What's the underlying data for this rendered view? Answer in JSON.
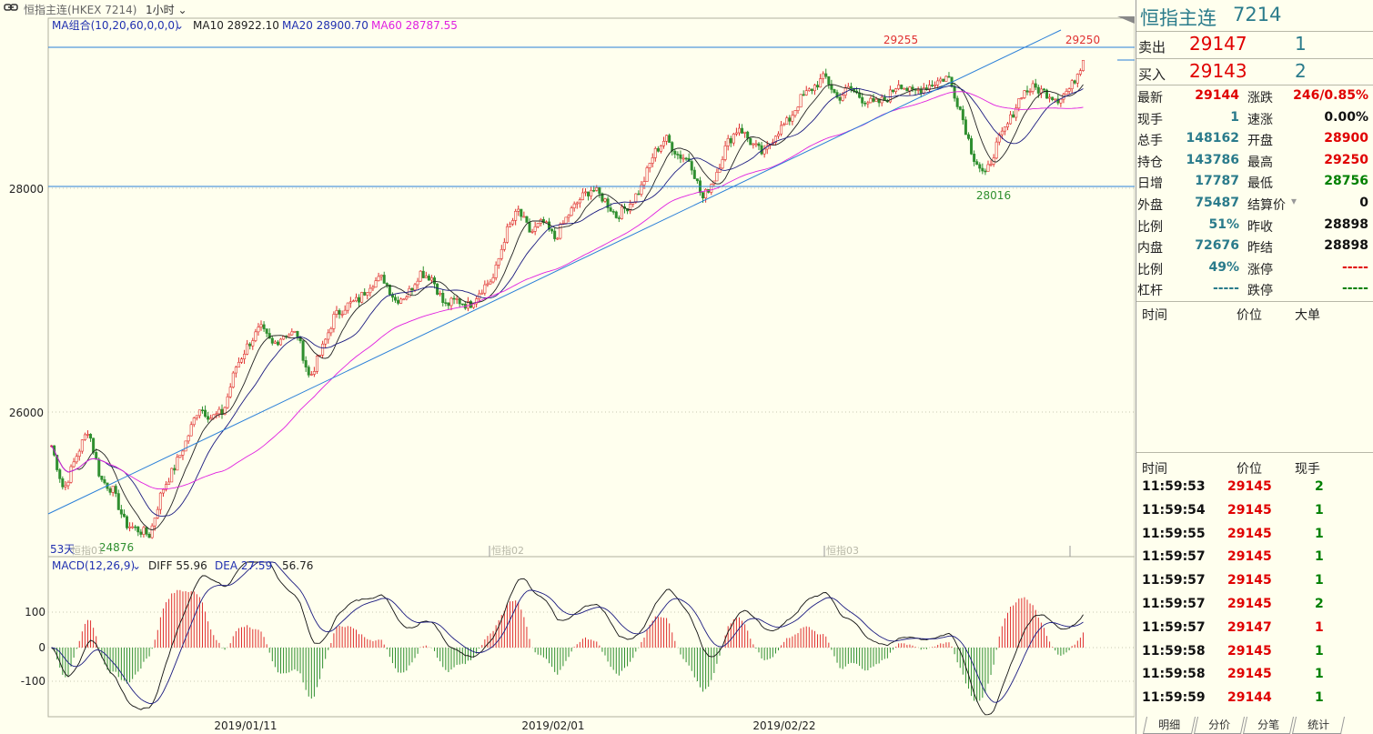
{
  "top": {
    "title": "恒指主连(HKEX 7214)",
    "period": "1小时"
  },
  "main": {
    "ma_label": "MA组合(10,20,60,0,0,0)",
    "ma10": "MA10 28922.10",
    "ma20": "MA20 28900.70",
    "ma60": "MA60 28787.55",
    "y_labels": [
      "28000",
      "26000"
    ],
    "high_label": "29255",
    "high2_label": "29250",
    "low_label": "28016",
    "low2_label": "24876",
    "period_count": "53天",
    "contract_labels": [
      "恒指01",
      "恒指02",
      "恒指03"
    ]
  },
  "macd": {
    "label": "MACD(12,26,9)",
    "diff": "DIFF 55.96",
    "dea": "DEA 27.59",
    "macd": "56.76",
    "y_labels": [
      "100",
      "0",
      "-100"
    ]
  },
  "x_dates": [
    "2019/01/11",
    "2019/02/01",
    "2019/02/22"
  ],
  "chart_data": {
    "type": "candlestick",
    "title": "恒指主连(HKEX 7214)",
    "interval": "1小时",
    "ylim": [
      24600,
      29500
    ],
    "y_ticks": [
      28000,
      26000
    ],
    "x_labels": [
      "2019/01/11",
      "2019/02/01",
      "2019/02/22"
    ],
    "segment_closes": [
      25700,
      25300,
      25600,
      25850,
      25400,
      25300,
      25000,
      24950,
      24900,
      25300,
      25500,
      25750,
      26050,
      25950,
      26000,
      26400,
      26600,
      26750,
      26600,
      26700,
      26700,
      26300,
      26550,
      26850,
      26950,
      27000,
      27150,
      27200,
      27000,
      27050,
      27250,
      27200,
      26950,
      27000,
      26950,
      27100,
      27200,
      27600,
      27800,
      27600,
      27700,
      27550,
      27750,
      27900,
      28000,
      27900,
      27750,
      27850,
      28000,
      28300,
      28450,
      28300,
      28250,
      27900,
      28100,
      28400,
      28550,
      28400,
      28300,
      28500,
      28600,
      28800,
      28900,
      29000,
      28800,
      28900,
      28800,
      28750,
      28800,
      28950,
      28850,
      28900,
      28950,
      29000,
      28700,
      28300,
      28100,
      28400,
      28600,
      28850,
      28900,
      28850,
      28800,
      28900,
      29145
    ],
    "high": 29255,
    "low": 24876,
    "last": 29144,
    "ma": {
      "MA10": 28922.1,
      "MA20": 28900.7,
      "MA60": 28787.55
    },
    "macd": {
      "DIFF": 55.96,
      "DEA": 27.59,
      "MACD": 56.76
    }
  },
  "quote": {
    "name": "恒指主连",
    "code": "7214",
    "sell_label": "卖出",
    "sell_price": "29147",
    "sell_vol": "1",
    "buy_label": "买入",
    "buy_price": "29143",
    "buy_vol": "2"
  },
  "info_rows": [
    {
      "l1": "最新",
      "v1": "29144",
      "c1": "#e00000",
      "l2": "涨跌",
      "v2": "246/0.85%",
      "c2": "#e00000"
    },
    {
      "l1": "现手",
      "v1": "1",
      "c1": "#2a7b8b",
      "l2": "速涨",
      "v2": "0.00%",
      "c2": "#111111"
    },
    {
      "l1": "总手",
      "v1": "148162",
      "c1": "#2a7b8b",
      "l2": "开盘",
      "v2": "28900",
      "c2": "#e00000"
    },
    {
      "l1": "持仓",
      "v1": "143786",
      "c1": "#2a7b8b",
      "l2": "最高",
      "v2": "29250",
      "c2": "#e00000"
    },
    {
      "l1": "日增",
      "v1": "17787",
      "c1": "#2a7b8b",
      "l2": "最低",
      "v2": "28756",
      "c2": "#008000"
    },
    {
      "l1": "外盘",
      "v1": "75487",
      "c1": "#2a7b8b",
      "l2": "结算价",
      "v2": "0",
      "c2": "#111111"
    },
    {
      "l1": "比例",
      "v1": "51%",
      "c1": "#2a7b8b",
      "l2": "昨收",
      "v2": "28898",
      "c2": "#111111"
    },
    {
      "l1": "内盘",
      "v1": "72676",
      "c1": "#2a7b8b",
      "l2": "昨结",
      "v2": "28898",
      "c2": "#111111"
    },
    {
      "l1": "比例",
      "v1": "49%",
      "c1": "#2a7b8b",
      "l2": "涨停",
      "v2": "-----",
      "c2": "#e00000"
    },
    {
      "l1": "杠杆",
      "v1": "-----",
      "c1": "#2a7b8b",
      "l2": "跌停",
      "v2": "-----",
      "c2": "#008000"
    }
  ],
  "big_order_header": {
    "time": "时间",
    "price": "价位",
    "big": "大单"
  },
  "tick_header": {
    "time": "时间",
    "price": "价位",
    "vol": "现手"
  },
  "ticks": [
    {
      "time": "11:59:53",
      "price": "29145",
      "vol": "2",
      "vc": "#008000"
    },
    {
      "time": "11:59:54",
      "price": "29145",
      "vol": "1",
      "vc": "#008000"
    },
    {
      "time": "11:59:55",
      "price": "29145",
      "vol": "1",
      "vc": "#008000"
    },
    {
      "time": "11:59:57",
      "price": "29145",
      "vol": "1",
      "vc": "#008000"
    },
    {
      "time": "11:59:57",
      "price": "29145",
      "vol": "1",
      "vc": "#008000"
    },
    {
      "time": "11:59:57",
      "price": "29145",
      "vol": "2",
      "vc": "#008000"
    },
    {
      "time": "11:59:57",
      "price": "29147",
      "vol": "1",
      "vc": "#e00000"
    },
    {
      "time": "11:59:58",
      "price": "29145",
      "vol": "1",
      "vc": "#008000"
    },
    {
      "time": "11:59:58",
      "price": "29145",
      "vol": "1",
      "vc": "#008000"
    },
    {
      "time": "11:59:59",
      "price": "29144",
      "vol": "1",
      "vc": "#008000"
    }
  ],
  "tabs": [
    "明细",
    "分价",
    "分笔",
    "统计"
  ],
  "colors": {
    "up": "#e03030",
    "down": "#2f8f2f",
    "ma10": "#222222",
    "ma20": "#1a1a80",
    "ma60": "#e020e0",
    "line": "#2a7fd8"
  }
}
